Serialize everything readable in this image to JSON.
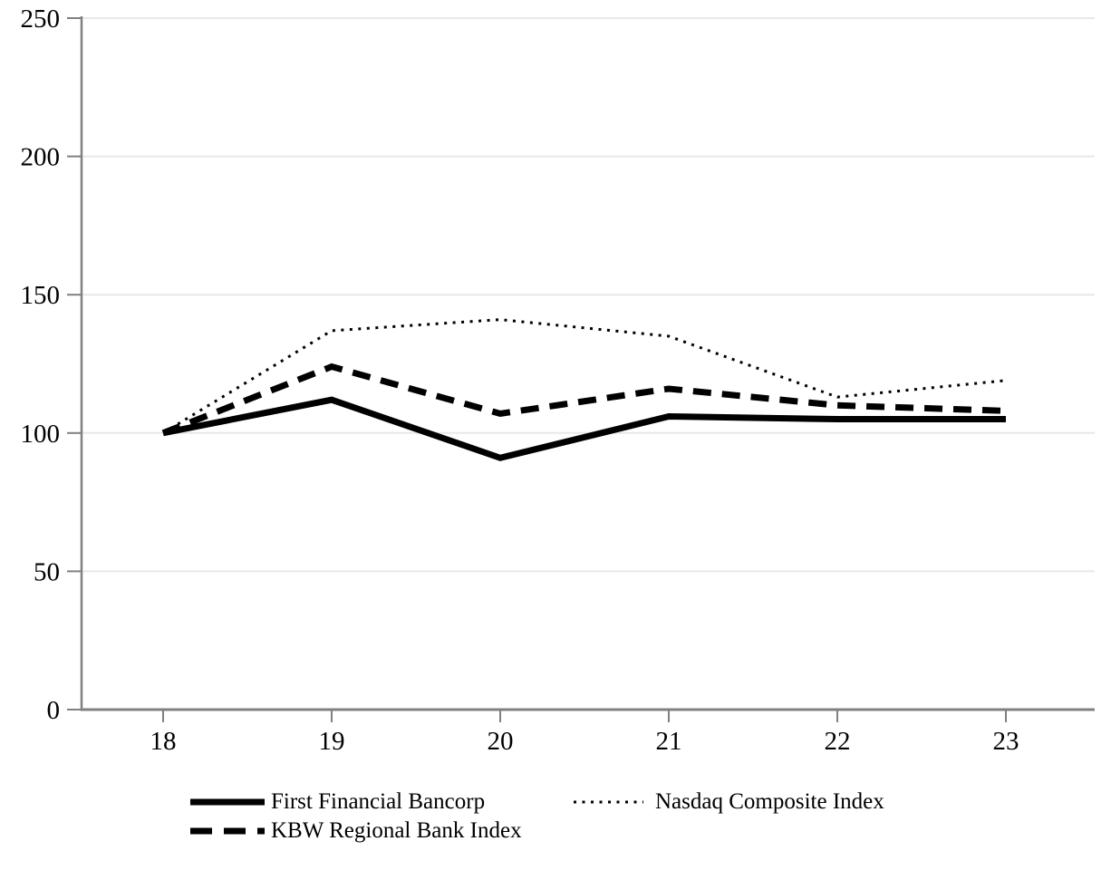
{
  "figure": {
    "background": "#ffffff",
    "axis_color": "#808080",
    "gridline_color": "#e8e8e8",
    "line_color": "#000000",
    "label_color": "#000000"
  },
  "chart_data": {
    "type": "line",
    "title": "",
    "xlabel": "",
    "ylabel": "",
    "categories": [
      "18",
      "19",
      "20",
      "21",
      "22",
      "23"
    ],
    "y_ticks": [
      0,
      50,
      100,
      150,
      200,
      250
    ],
    "ylim": [
      0,
      250
    ],
    "grid": true,
    "legend_position": "bottom",
    "series": [
      {
        "name": "First Financial Bancorp",
        "style": "solid",
        "values": [
          100,
          112,
          91,
          106,
          105,
          105
        ]
      },
      {
        "name": "KBW Regional Bank Index",
        "style": "dashed",
        "values": [
          100,
          124,
          107,
          116,
          110,
          108
        ]
      },
      {
        "name": "Nasdaq Composite Index",
        "style": "dotted",
        "values": [
          100,
          137,
          141,
          135,
          113,
          119
        ]
      }
    ]
  }
}
